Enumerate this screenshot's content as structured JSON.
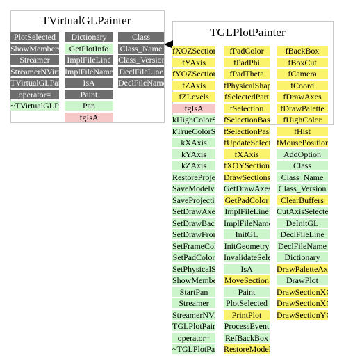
{
  "left_class": {
    "title": "TVirtualGLPainter",
    "col1": [
      {
        "label": "PlotSelected",
        "color": "gray"
      },
      {
        "label": "ShowMembers",
        "color": "gray"
      },
      {
        "label": "Streamer",
        "color": "gray"
      },
      {
        "label": "StreamerNVirtual",
        "color": "gray"
      },
      {
        "label": "TVirtualGLPainter",
        "color": "gray"
      },
      {
        "label": "operator=",
        "color": "gray"
      },
      {
        "label": "~TVirtualGLPainter",
        "color": "green"
      }
    ],
    "col2": [
      {
        "label": "Dictionary",
        "color": "gray"
      },
      {
        "label": "GetPlotInfo",
        "color": "green"
      },
      {
        "label": "ImplFileLine",
        "color": "gray"
      },
      {
        "label": "ImplFileName",
        "color": "gray"
      },
      {
        "label": "IsA",
        "color": "gray"
      },
      {
        "label": "Paint",
        "color": "gray"
      },
      {
        "label": "Pan",
        "color": "green"
      },
      {
        "label": "fgIsA",
        "color": "pink"
      }
    ],
    "col3": [
      {
        "label": "Class",
        "color": "gray"
      },
      {
        "label": "Class_Name",
        "color": "gray"
      },
      {
        "label": "Class_Version",
        "color": "gray"
      },
      {
        "label": "DeclFileLine",
        "color": "gray"
      },
      {
        "label": "DeclFileName",
        "color": "gray"
      }
    ]
  },
  "right_class": {
    "title": "TGLPlotPainter",
    "col1": [
      {
        "label": "fXOZSectionPos",
        "color": "yellow"
      },
      {
        "label": "fYAxis",
        "color": "yellow"
      },
      {
        "label": "fYOZSectionPos",
        "color": "yellow"
      },
      {
        "label": "fZAxis",
        "color": "yellow"
      },
      {
        "label": "fZLevels",
        "color": "yellow"
      },
      {
        "label": "fgIsA",
        "color": "pink"
      },
      {
        "label": "kHighColorSelectionBase",
        "color": "green"
      },
      {
        "label": "kTrueColorSelectionBase",
        "color": "green"
      },
      {
        "label": "kXAxis",
        "color": "green"
      },
      {
        "label": "kYAxis",
        "color": "green"
      },
      {
        "label": "kZAxis",
        "color": "green"
      },
      {
        "label": "RestoreProjectionMatrix",
        "color": "green"
      },
      {
        "label": "SaveModelviewMatrix",
        "color": "green"
      },
      {
        "label": "SaveProjectionMatrix",
        "color": "green"
      },
      {
        "label": "SetDrawAxes",
        "color": "green"
      },
      {
        "label": "SetDrawBackBox",
        "color": "green"
      },
      {
        "label": "SetDrawFrontBox",
        "color": "green"
      },
      {
        "label": "SetFrameColor",
        "color": "green"
      },
      {
        "label": "SetPadColor",
        "color": "green"
      },
      {
        "label": "SetPhysicalShapeColor",
        "color": "green"
      },
      {
        "label": "ShowMembers",
        "color": "green"
      },
      {
        "label": "StartPan",
        "color": "green"
      },
      {
        "label": "Streamer",
        "color": "green"
      },
      {
        "label": "StreamerNVirtual",
        "color": "green"
      },
      {
        "label": "TGLPlotPainter",
        "color": "green"
      },
      {
        "label": "operator=",
        "color": "green"
      },
      {
        "label": "~TGLPlotPainter",
        "color": "green"
      }
    ],
    "col2": [
      {
        "label": "fPadColor",
        "color": "yellow"
      },
      {
        "label": "fPadPhi",
        "color": "yellow"
      },
      {
        "label": "fPadTheta",
        "color": "yellow"
      },
      {
        "label": "fPhysicalShapeColor",
        "color": "yellow"
      },
      {
        "label": "fSelectedPart",
        "color": "yellow"
      },
      {
        "label": "fSelection",
        "color": "yellow"
      },
      {
        "label": "fSelectionBase",
        "color": "yellow"
      },
      {
        "label": "fSelectionPass",
        "color": "yellow"
      },
      {
        "label": "fUpdateSelection",
        "color": "yellow"
      },
      {
        "label": "fXAxis",
        "color": "yellow"
      },
      {
        "label": "fXOYSectionPos",
        "color": "yellow"
      },
      {
        "label": "DrawSections",
        "color": "yellow"
      },
      {
        "label": "GetDrawAxes",
        "color": "green"
      },
      {
        "label": "GetPadColor",
        "color": "yellow"
      },
      {
        "label": "ImplFileLine",
        "color": "green"
      },
      {
        "label": "ImplFileName",
        "color": "green"
      },
      {
        "label": "InitGL",
        "color": "green"
      },
      {
        "label": "InitGeometry",
        "color": "green"
      },
      {
        "label": "InvalidateSelection",
        "color": "green"
      },
      {
        "label": "IsA",
        "color": "green"
      },
      {
        "label": "MoveSection",
        "color": "yellow"
      },
      {
        "label": "Paint",
        "color": "green"
      },
      {
        "label": "PlotSelected",
        "color": "green"
      },
      {
        "label": "PrintPlot",
        "color": "yellow"
      },
      {
        "label": "ProcessEvent",
        "color": "green"
      },
      {
        "label": "RefBackBox",
        "color": "green"
      },
      {
        "label": "RestoreModelviewMatrix",
        "color": "yellow"
      }
    ],
    "col3": [
      {
        "label": "fBackBox",
        "color": "yellow"
      },
      {
        "label": "fBoxCut",
        "color": "yellow"
      },
      {
        "label": "fCamera",
        "color": "yellow"
      },
      {
        "label": "fCoord",
        "color": "yellow"
      },
      {
        "label": "fDrawAxes",
        "color": "yellow"
      },
      {
        "label": "fDrawPalette",
        "color": "yellow"
      },
      {
        "label": "fHighColor",
        "color": "yellow"
      },
      {
        "label": "fHist",
        "color": "yellow"
      },
      {
        "label": "fMousePosition",
        "color": "yellow"
      },
      {
        "label": "AddOption",
        "color": "green"
      },
      {
        "label": "Class",
        "color": "green"
      },
      {
        "label": "Class_Name",
        "color": "green"
      },
      {
        "label": "Class_Version",
        "color": "green"
      },
      {
        "label": "ClearBuffers",
        "color": "yellow"
      },
      {
        "label": "CutAxisSelected",
        "color": "green"
      },
      {
        "label": "DeInitGL",
        "color": "green"
      },
      {
        "label": "DeclFileLine",
        "color": "green"
      },
      {
        "label": "DeclFileName",
        "color": "green"
      },
      {
        "label": "Dictionary",
        "color": "green"
      },
      {
        "label": "DrawPaletteAxis",
        "color": "yellow"
      },
      {
        "label": "DrawPlot",
        "color": "green"
      },
      {
        "label": "DrawSectionXOY",
        "color": "yellow"
      },
      {
        "label": "DrawSectionXOZ",
        "color": "yellow"
      },
      {
        "label": "DrawSectionYOZ",
        "color": "yellow"
      }
    ]
  }
}
